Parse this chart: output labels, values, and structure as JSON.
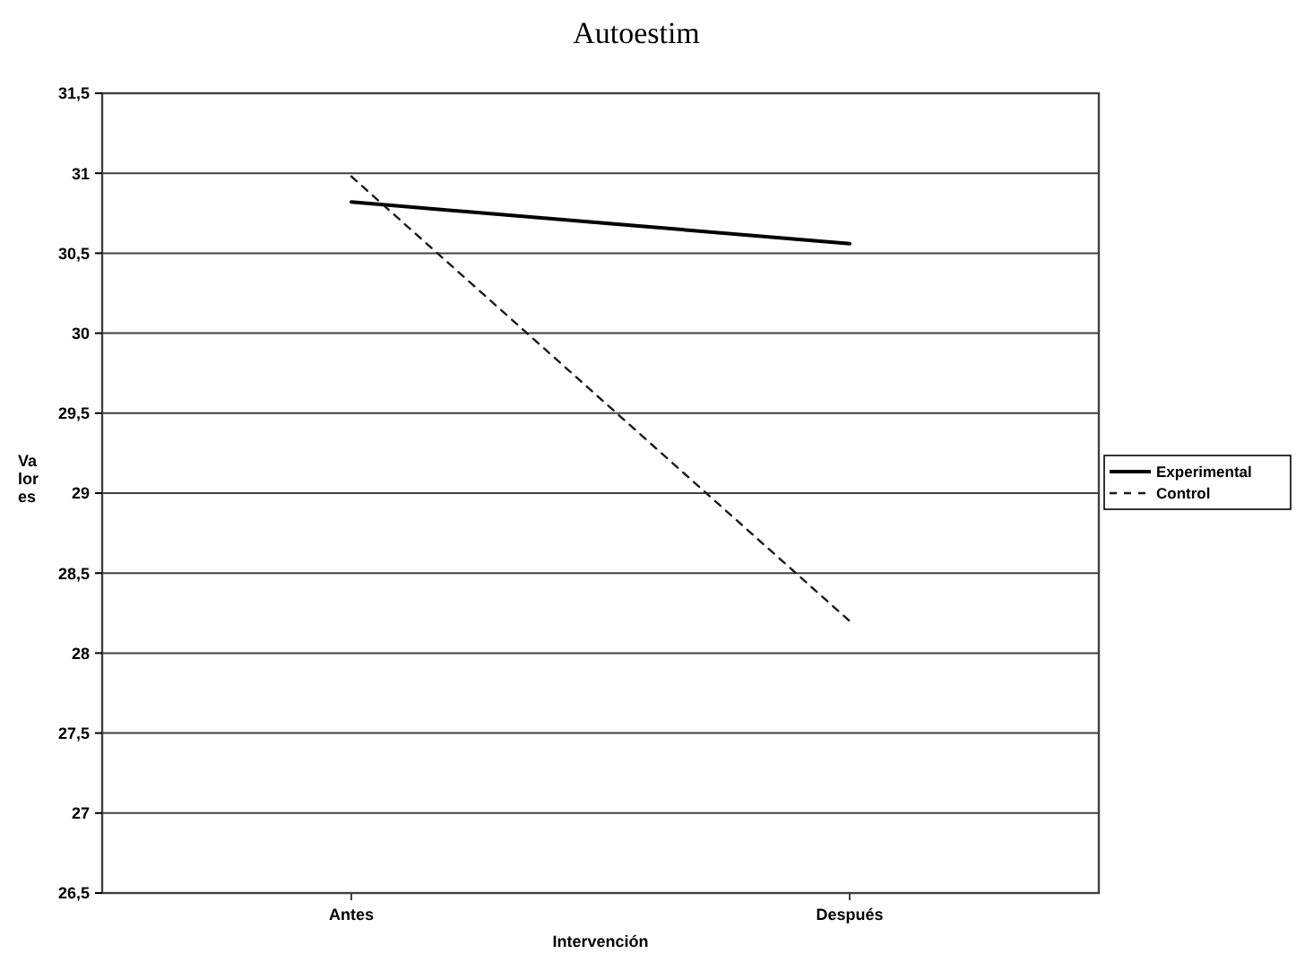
{
  "chart_data": {
    "type": "line",
    "title": "Autoestim",
    "xlabel": "Intervención",
    "ylabel": "Valores",
    "categories": [
      "Antes",
      "Después"
    ],
    "series": [
      {
        "name": "Experimental",
        "color": "#000000",
        "values": [
          30.82,
          30.56
        ],
        "line_style": "solid"
      },
      {
        "name": "Control",
        "color": "#1a1a1a",
        "values": [
          30.98,
          28.2
        ],
        "line_style": "dashed"
      }
    ],
    "ylim": [
      26.5,
      31.5
    ],
    "yticks": [
      {
        "value": 26.5,
        "label": "26,5"
      },
      27,
      {
        "value": 27.5,
        "label": "27,5"
      },
      28,
      {
        "value": 28.5,
        "label": "28,5"
      },
      29,
      {
        "value": 29.5,
        "label": "29,5"
      },
      30,
      {
        "value": 30.5,
        "label": "30,5"
      },
      31,
      {
        "value": 31.5,
        "label": "31,5"
      }
    ],
    "grid": "y",
    "legend": "right",
    "marker": "none"
  }
}
